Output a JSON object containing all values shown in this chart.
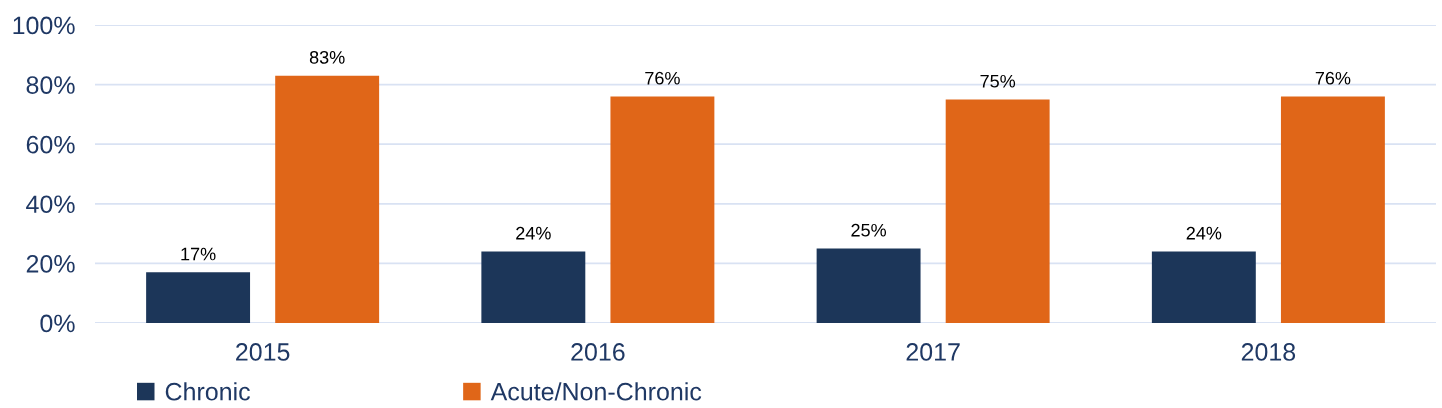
{
  "chart_data": {
    "type": "bar",
    "categories": [
      "2015",
      "2016",
      "2017",
      "2018"
    ],
    "series": [
      {
        "name": "Chronic",
        "color": "#1c3659",
        "values": [
          17,
          24,
          25,
          24
        ],
        "value_labels": [
          "17%",
          "24%",
          "25%",
          "24%"
        ]
      },
      {
        "name": "Acute/Non-Chronic",
        "color": "#e06618",
        "values": [
          83,
          76,
          75,
          76
        ],
        "value_labels": [
          "83%",
          "76%",
          "75%",
          "76%"
        ]
      }
    ],
    "ylim": [
      0,
      100
    ],
    "yticks": [
      {
        "value": 0,
        "label": "0%"
      },
      {
        "value": 20,
        "label": "20%"
      },
      {
        "value": 40,
        "label": "40%"
      },
      {
        "value": 60,
        "label": "60%"
      },
      {
        "value": 80,
        "label": "80%"
      },
      {
        "value": 100,
        "label": "100%"
      }
    ],
    "grid": "y",
    "legend": "bottom"
  }
}
